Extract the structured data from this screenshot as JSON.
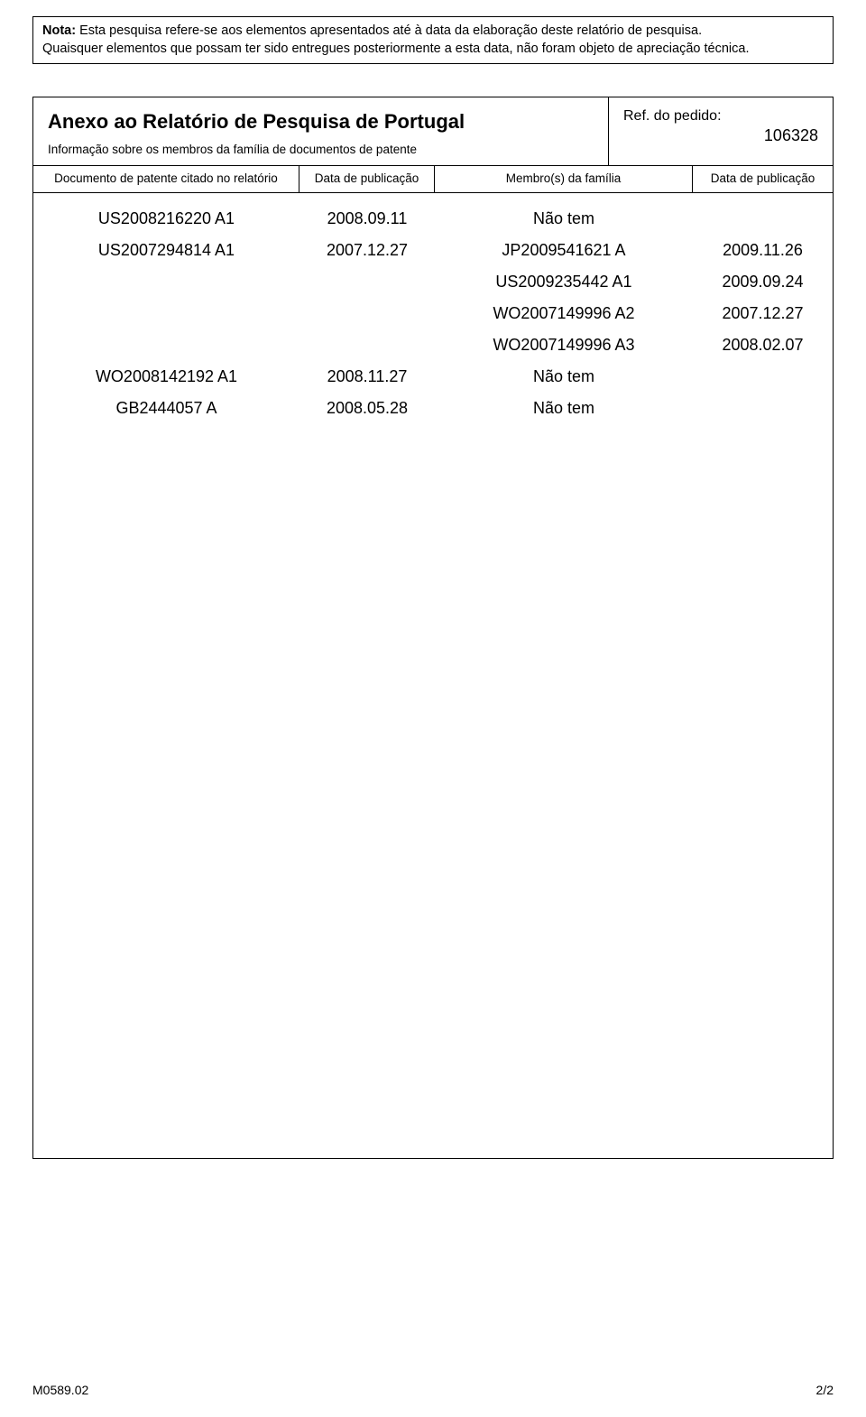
{
  "note": {
    "bold_label": "Nota:",
    "line1_rest": " Esta pesquisa refere-se aos elementos apresentados até à data da elaboração deste relatório de pesquisa.",
    "line2": "Quaisquer elementos que possam ter sido entregues posteriormente a esta data, não foram objeto de apreciação técnica."
  },
  "header": {
    "title": "Anexo ao Relatório de Pesquisa de Portugal",
    "subtitle": "Informação sobre os membros da família de documentos de patente",
    "ref_label": "Ref. do pedido:",
    "ref_number": "106328"
  },
  "columns": {
    "c1": "Documento de patente citado no relatório",
    "c2": "Data de publicação",
    "c3": "Membro(s) da família",
    "c4": "Data de publicação"
  },
  "rows": [
    {
      "doc": "US2008216220 A1",
      "date": "2008.09.11",
      "member": "Não tem",
      "mdate": ""
    },
    {
      "doc": "US2007294814 A1",
      "date": "2007.12.27",
      "member": "JP2009541621 A",
      "mdate": "2009.11.26"
    },
    {
      "doc": "",
      "date": "",
      "member": "US2009235442 A1",
      "mdate": "2009.09.24"
    },
    {
      "doc": "",
      "date": "",
      "member": "WO2007149996 A2",
      "mdate": "2007.12.27"
    },
    {
      "doc": "",
      "date": "",
      "member": "WO2007149996 A3",
      "mdate": "2008.02.07"
    },
    {
      "doc": "WO2008142192 A1",
      "date": "2008.11.27",
      "member": "Não tem",
      "mdate": ""
    },
    {
      "doc": "GB2444057 A",
      "date": "2008.05.28",
      "member": "Não tem",
      "mdate": ""
    }
  ],
  "footer": {
    "left": "M0589.02",
    "right": "2/2"
  }
}
